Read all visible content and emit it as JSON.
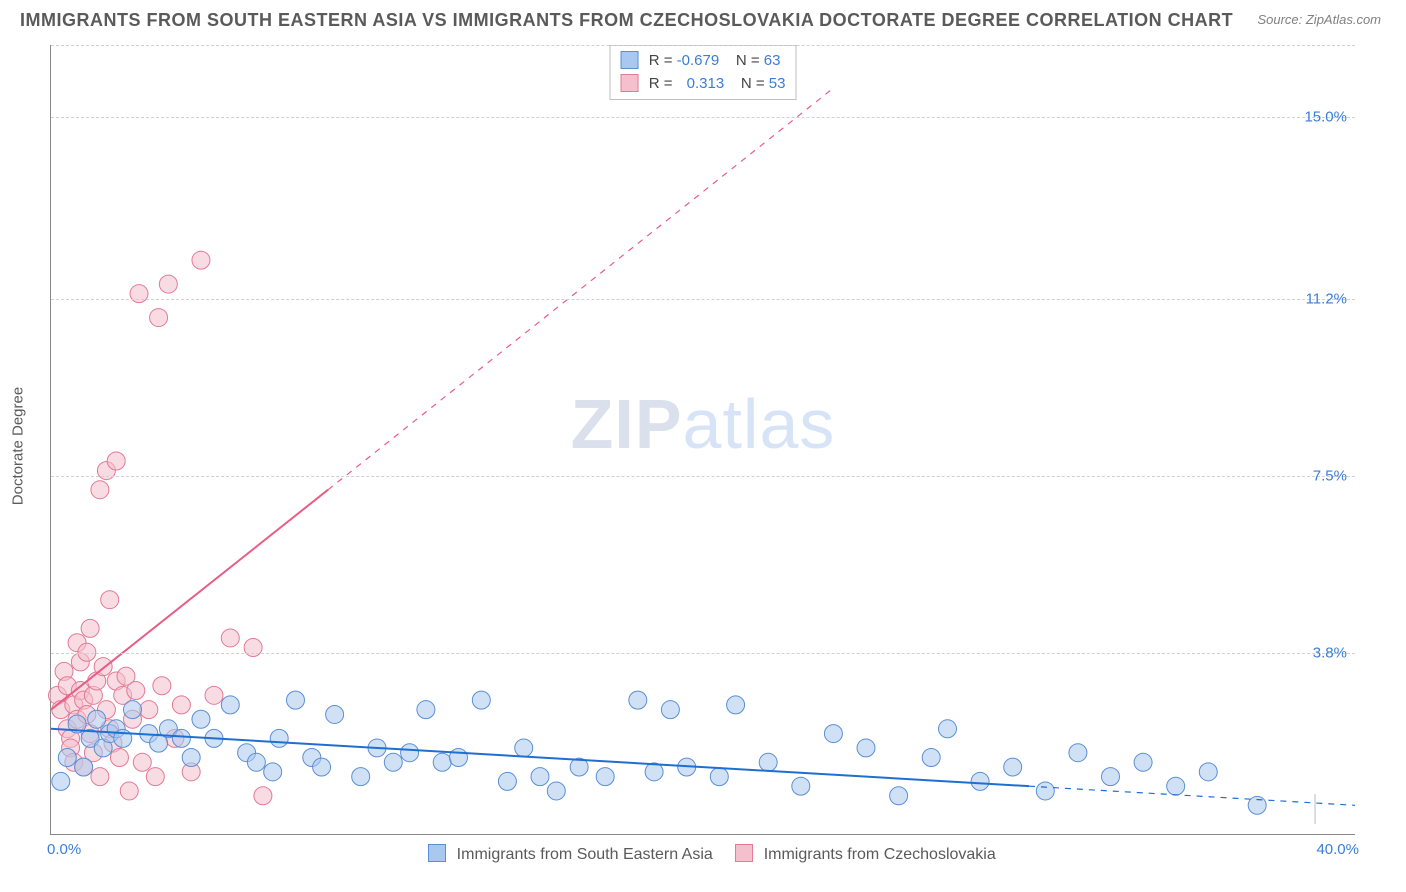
{
  "title": "IMMIGRANTS FROM SOUTH EASTERN ASIA VS IMMIGRANTS FROM CZECHOSLOVAKIA DOCTORATE DEGREE CORRELATION CHART",
  "source": "Source: ZipAtlas.com",
  "y_axis_title": "Doctorate Degree",
  "watermark_bold": "ZIP",
  "watermark_rest": "atlas",
  "chart": {
    "type": "scatter",
    "background_color": "#ffffff",
    "grid_color": "#d0d0d0",
    "axis_color": "#888888",
    "tick_color": "#3b7dd8",
    "title_color": "#5a5a5a",
    "title_fontsize": 18,
    "label_fontsize": 15,
    "xlim": [
      0,
      40
    ],
    "ylim": [
      0,
      16.5
    ],
    "yticks": [
      3.8,
      7.5,
      11.2,
      15.0
    ],
    "ytick_labels": [
      "3.8%",
      "7.5%",
      "11.2%",
      "15.0%"
    ],
    "xtick_min_label": "0.0%",
    "xtick_max_label": "40.0%",
    "marker_radius": 9,
    "marker_opacity": 0.55,
    "line_width": 2,
    "trend_dash": "6,6",
    "series": [
      {
        "name": "Immigrants from South Eastern Asia",
        "color_fill": "#a9c8ef",
        "color_stroke": "#5a8fd6",
        "line_color": "#1f6fd0",
        "R": "-0.679",
        "N": "63",
        "points": [
          [
            0.3,
            1.1
          ],
          [
            0.5,
            1.6
          ],
          [
            0.8,
            2.3
          ],
          [
            1.0,
            1.4
          ],
          [
            1.2,
            2.0
          ],
          [
            1.4,
            2.4
          ],
          [
            1.6,
            1.8
          ],
          [
            1.8,
            2.1
          ],
          [
            2.0,
            2.2
          ],
          [
            2.2,
            2.0
          ],
          [
            2.5,
            2.6
          ],
          [
            3.0,
            2.1
          ],
          [
            3.3,
            1.9
          ],
          [
            3.6,
            2.2
          ],
          [
            4.0,
            2.0
          ],
          [
            4.3,
            1.6
          ],
          [
            4.6,
            2.4
          ],
          [
            5.0,
            2.0
          ],
          [
            5.5,
            2.7
          ],
          [
            6.0,
            1.7
          ],
          [
            6.3,
            1.5
          ],
          [
            6.8,
            1.3
          ],
          [
            7.0,
            2.0
          ],
          [
            7.5,
            2.8
          ],
          [
            8.0,
            1.6
          ],
          [
            8.3,
            1.4
          ],
          [
            8.7,
            2.5
          ],
          [
            9.5,
            1.2
          ],
          [
            10.0,
            1.8
          ],
          [
            10.5,
            1.5
          ],
          [
            11.0,
            1.7
          ],
          [
            11.5,
            2.6
          ],
          [
            12.0,
            1.5
          ],
          [
            12.5,
            1.6
          ],
          [
            13.2,
            2.8
          ],
          [
            14.0,
            1.1
          ],
          [
            14.5,
            1.8
          ],
          [
            15.0,
            1.2
          ],
          [
            15.5,
            0.9
          ],
          [
            16.2,
            1.4
          ],
          [
            17.0,
            1.2
          ],
          [
            18.0,
            2.8
          ],
          [
            18.5,
            1.3
          ],
          [
            19.0,
            2.6
          ],
          [
            19.5,
            1.4
          ],
          [
            20.5,
            1.2
          ],
          [
            21.0,
            2.7
          ],
          [
            22.0,
            1.5
          ],
          [
            23.0,
            1.0
          ],
          [
            24.0,
            2.1
          ],
          [
            25.0,
            1.8
          ],
          [
            26.0,
            0.8
          ],
          [
            27.0,
            1.6
          ],
          [
            27.5,
            2.2
          ],
          [
            28.5,
            1.1
          ],
          [
            29.5,
            1.4
          ],
          [
            30.5,
            0.9
          ],
          [
            31.5,
            1.7
          ],
          [
            32.5,
            1.2
          ],
          [
            33.5,
            1.5
          ],
          [
            34.5,
            1.0
          ],
          [
            35.5,
            1.3
          ],
          [
            37.0,
            0.6
          ]
        ],
        "trend_solid": {
          "x1": 0,
          "y1": 2.2,
          "x2": 30,
          "y2": 1.0
        },
        "trend_dash_seg": {
          "x1": 30,
          "y1": 1.0,
          "x2": 40,
          "y2": 0.6
        }
      },
      {
        "name": "Immigrants from Czechoslovakia",
        "color_fill": "#f4c0cc",
        "color_stroke": "#e37a97",
        "line_color": "#e85d87",
        "R": "0.313",
        "N": "53",
        "points": [
          [
            0.2,
            2.9
          ],
          [
            0.3,
            2.6
          ],
          [
            0.4,
            3.4
          ],
          [
            0.5,
            2.2
          ],
          [
            0.5,
            3.1
          ],
          [
            0.6,
            2.0
          ],
          [
            0.6,
            1.8
          ],
          [
            0.7,
            2.7
          ],
          [
            0.7,
            1.5
          ],
          [
            0.8,
            4.0
          ],
          [
            0.8,
            2.4
          ],
          [
            0.9,
            3.0
          ],
          [
            0.9,
            3.6
          ],
          [
            1.0,
            2.8
          ],
          [
            1.0,
            1.4
          ],
          [
            1.1,
            2.5
          ],
          [
            1.1,
            3.8
          ],
          [
            1.2,
            2.1
          ],
          [
            1.2,
            4.3
          ],
          [
            1.3,
            1.7
          ],
          [
            1.3,
            2.9
          ],
          [
            1.4,
            3.2
          ],
          [
            1.5,
            1.2
          ],
          [
            1.5,
            7.2
          ],
          [
            1.6,
            3.5
          ],
          [
            1.7,
            2.6
          ],
          [
            1.7,
            7.6
          ],
          [
            1.8,
            2.2
          ],
          [
            1.8,
            4.9
          ],
          [
            1.9,
            1.9
          ],
          [
            2.0,
            3.2
          ],
          [
            2.0,
            7.8
          ],
          [
            2.1,
            1.6
          ],
          [
            2.2,
            2.9
          ],
          [
            2.3,
            3.3
          ],
          [
            2.4,
            0.9
          ],
          [
            2.5,
            2.4
          ],
          [
            2.6,
            3.0
          ],
          [
            2.7,
            11.3
          ],
          [
            2.8,
            1.5
          ],
          [
            3.0,
            2.6
          ],
          [
            3.2,
            1.2
          ],
          [
            3.3,
            10.8
          ],
          [
            3.4,
            3.1
          ],
          [
            3.6,
            11.5
          ],
          [
            3.8,
            2.0
          ],
          [
            4.0,
            2.7
          ],
          [
            4.3,
            1.3
          ],
          [
            4.6,
            12.0
          ],
          [
            5.0,
            2.9
          ],
          [
            5.5,
            4.1
          ],
          [
            6.2,
            3.9
          ],
          [
            6.5,
            0.8
          ]
        ],
        "trend_solid": {
          "x1": 0,
          "y1": 2.6,
          "x2": 8.5,
          "y2": 7.2
        },
        "trend_dash_seg": {
          "x1": 8.5,
          "y1": 7.2,
          "x2": 24,
          "y2": 15.6
        }
      }
    ]
  },
  "legend_top_labels": {
    "R": "R =",
    "N": "N ="
  },
  "legend_bottom": [
    {
      "label": "Immigrants from South Eastern Asia",
      "fill": "#a9c8ef",
      "stroke": "#5a8fd6"
    },
    {
      "label": "Immigrants from Czechoslovakia",
      "fill": "#f4c0cc",
      "stroke": "#e37a97"
    }
  ]
}
